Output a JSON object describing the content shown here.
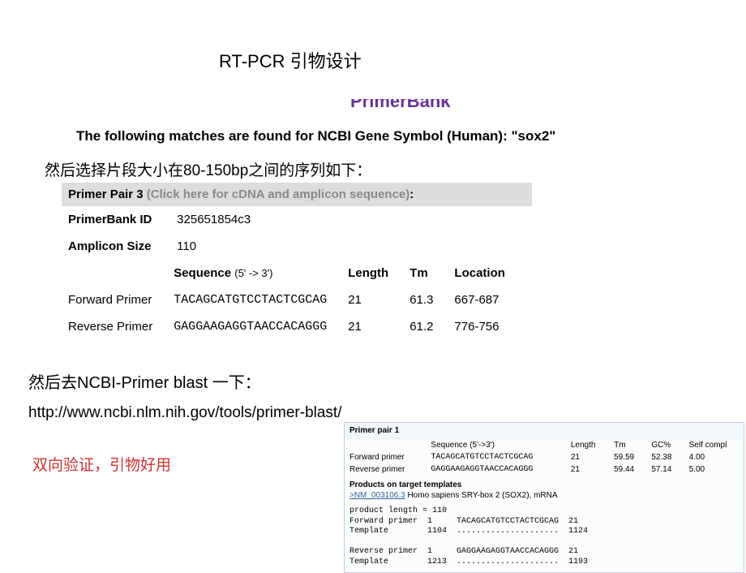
{
  "title": "RT-PCR 引物设计",
  "primerbank_logo": "PrimerBank",
  "matches_header": "The following matches are found for NCBI Gene Symbol (Human): \"sox2\"",
  "text1": "然后选择片段大小在80-150bp之间的序列如下：",
  "pair": {
    "header_label": "Primer Pair 3",
    "header_link": "(Click here for cDNA and amplicon sequence)",
    "header_tail": ":",
    "id_label": "PrimerBank ID",
    "id_value": "325651854c3",
    "size_label": "Amplicon Size",
    "size_value": "110",
    "cols": {
      "seq_label": "Sequence",
      "seq_sub": "(5' -> 3')",
      "len": "Length",
      "tm": "Tm",
      "loc": "Location"
    },
    "fwd": {
      "name": "Forward Primer",
      "seq": "TACAGCATGTCCTACTCGCAG",
      "len": "21",
      "tm": "61.3",
      "loc": "667-687"
    },
    "rev": {
      "name": "Reverse Primer",
      "seq": "GAGGAAGAGGTAACCACAGGG",
      "len": "21",
      "tm": "61.2",
      "loc": "776-756"
    }
  },
  "text2": "然后去NCBI-Primer  blast 一下：",
  "url": "http://www.ncbi.nlm.nih.gov/tools/primer-blast/",
  "text3": "双向验证，引物好用",
  "blast": {
    "title": "Primer pair 1",
    "cols": {
      "seq": "Sequence (5'->3')",
      "len": "Length",
      "tm": "Tm",
      "gc": "GC%",
      "self": "Self compl"
    },
    "fwd": {
      "name": "Forward primer",
      "seq": "TACAGCATGTCCTACTCGCAG",
      "len": "21",
      "tm": "59.59",
      "gc": "52.38",
      "self": "4.00"
    },
    "rev": {
      "name": "Reverse primer",
      "seq": "GAGGAAGAGGTAACCACAGGG",
      "len": "21",
      "tm": "59.44",
      "gc": "57.14",
      "self": "5.00"
    },
    "products_label": "Products on target templates",
    "nm_link": ">NM_003106.3",
    "nm_tail": " Homo sapiens SRY-box 2 (SOX2), mRNA",
    "align": "product length = 110\nForward primer  1     TACAGCATGTCCTACTCGCAG  21\nTemplate        1104  .....................  1124\n\nReverse primer  1     GAGGAAGAGGTAACCACAGGG  21\nTemplate        1213  .....................  1193"
  }
}
